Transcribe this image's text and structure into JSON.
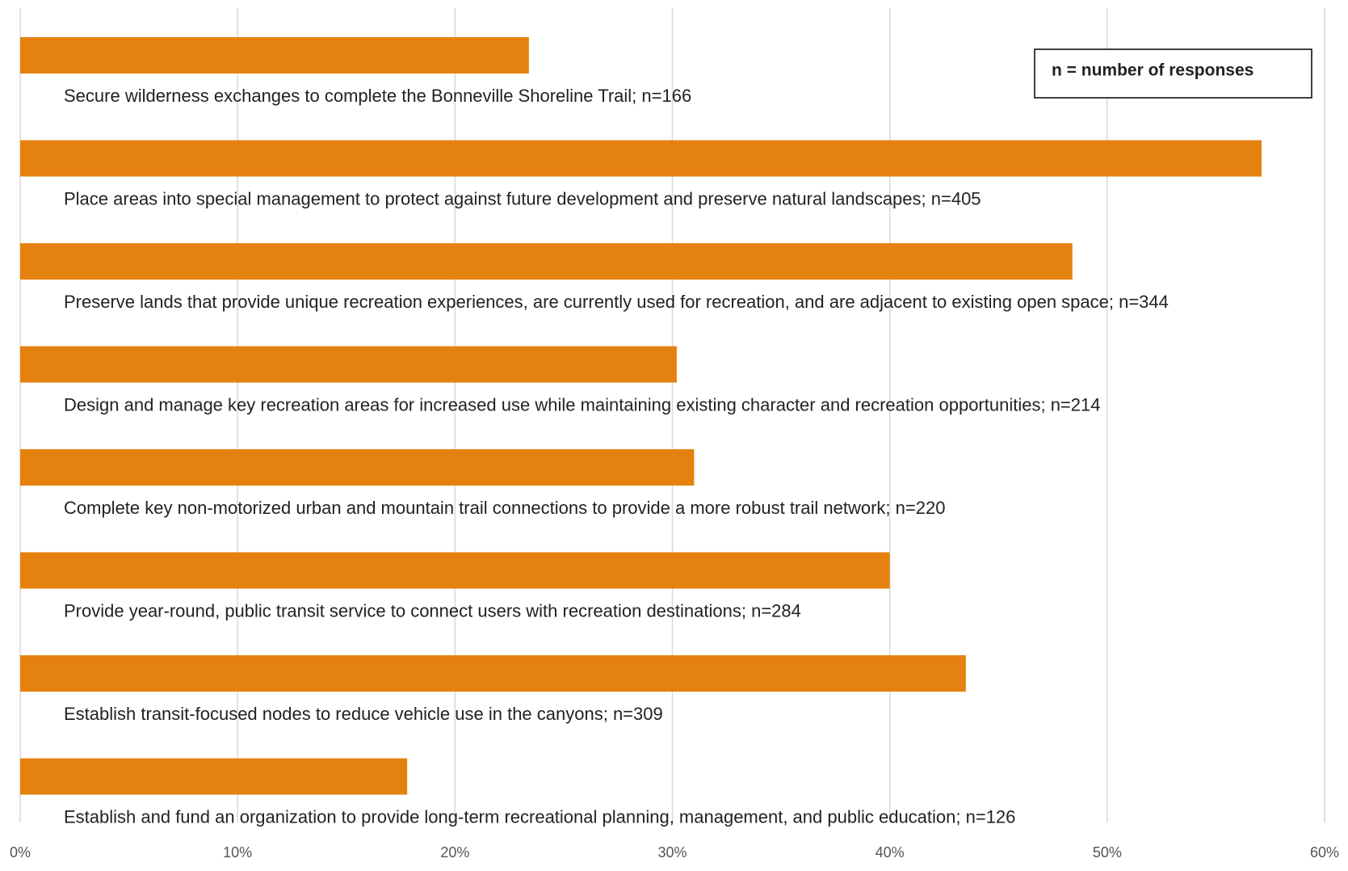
{
  "chart_data": {
    "type": "bar",
    "orientation": "horizontal",
    "annotation": "n = number of responses",
    "categories": [
      "Secure wilderness exchanges to complete the Bonneville Shoreline Trail; n=166",
      "Place areas into special management to protect against future development and preserve natural landscapes; n=405",
      "Preserve lands that provide unique recreation experiences, are currently used for recreation, and are adjacent to existing open space; n=344",
      "Design and manage key recreation areas for increased use while maintaining existing character and recreation opportunities; n=214",
      "Complete key non-motorized urban and mountain trail connections to provide a more robust trail network; n=220",
      "Provide year-round, public transit service to connect users with recreation destinations; n=284",
      "Establish transit-focused nodes to reduce vehicle use in the canyons; n=309",
      "Establish and fund an organization to provide long-term recreational planning, management, and public education; n=126"
    ],
    "values": [
      23.4,
      57.1,
      48.4,
      30.2,
      31.0,
      40.0,
      43.5,
      17.8
    ],
    "color": "#e5820f",
    "xlim": [
      0,
      60
    ],
    "xticks": [
      {
        "value": 0,
        "label": "0%"
      },
      {
        "value": 10,
        "label": "10%"
      },
      {
        "value": 20,
        "label": "20%"
      },
      {
        "value": 30,
        "label": "30%"
      },
      {
        "value": 40,
        "label": "40%"
      },
      {
        "value": 50,
        "label": "50%"
      },
      {
        "value": 60,
        "label": "60%"
      }
    ],
    "grid": true
  }
}
